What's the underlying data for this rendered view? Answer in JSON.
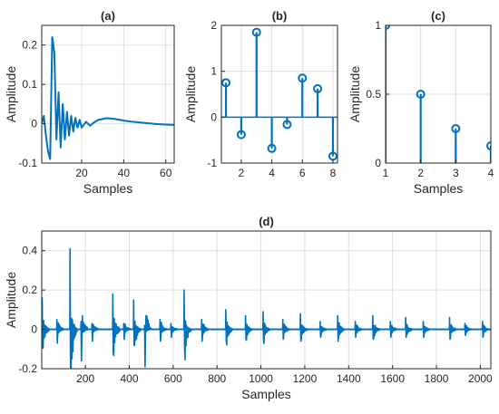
{
  "chart_data": [
    {
      "panel": "(a)",
      "type": "line",
      "title": "(a)",
      "xlabel": "Samples",
      "ylabel": "Amplitude",
      "xlim": [
        1,
        64
      ],
      "ylim": [
        -0.1,
        0.25
      ],
      "xticks": [
        20,
        40,
        60
      ],
      "yticks": [
        -0.1,
        0,
        0.1,
        0.2
      ],
      "ytick_labels": [
        "-0.1",
        "0",
        "0.1",
        "0.2"
      ],
      "grid": true,
      "color": "#0072BD",
      "x": [
        1,
        2,
        3,
        4,
        5,
        6,
        7,
        8,
        9,
        10,
        11,
        12,
        13,
        14,
        15,
        16,
        17,
        18,
        19,
        20,
        22,
        24,
        26,
        28,
        30,
        32,
        34,
        36,
        38,
        40,
        44,
        48,
        52,
        56,
        60,
        64
      ],
      "y": [
        0,
        0.02,
        -0.03,
        -0.07,
        -0.09,
        0.22,
        0.18,
        -0.04,
        0.08,
        -0.06,
        0.05,
        -0.04,
        0.03,
        -0.03,
        0.02,
        -0.02,
        0.015,
        -0.01,
        0.01,
        -0.01,
        0.005,
        -0.005,
        0.004,
        0.01,
        0.012,
        0.014,
        0.013,
        0.012,
        0.01,
        0.008,
        0.005,
        0.003,
        0.001,
        -0.001,
        -0.002,
        -0.003
      ]
    },
    {
      "panel": "(b)",
      "type": "stem",
      "title": "(b)",
      "xlabel": "",
      "ylabel": "Amplitude",
      "xlim": [
        0.7,
        8.3
      ],
      "ylim": [
        -1,
        2
      ],
      "xticks": [
        2,
        4,
        6,
        8
      ],
      "yticks": [
        -1,
        0,
        1,
        2
      ],
      "grid": true,
      "color": "#0072BD",
      "x": [
        1,
        2,
        3,
        4,
        5,
        6,
        7,
        8
      ],
      "y": [
        0.75,
        -0.38,
        1.85,
        -0.68,
        -0.16,
        0.85,
        0.62,
        -0.85
      ]
    },
    {
      "panel": "(c)",
      "type": "stem",
      "title": "(c)",
      "xlabel": "Samples",
      "ylabel": "Amplitude",
      "xlim": [
        1,
        4
      ],
      "ylim": [
        0,
        1
      ],
      "xticks": [
        1,
        2,
        3,
        4
      ],
      "yticks": [
        0,
        0.5,
        1
      ],
      "grid": true,
      "color": "#0072BD",
      "x": [
        1,
        2,
        3,
        4
      ],
      "y": [
        1,
        0.5,
        0.25,
        0.125
      ]
    },
    {
      "panel": "(d)",
      "type": "line",
      "title": "(d)",
      "xlabel": "Samples",
      "ylabel": "Amplitude",
      "xlim": [
        1,
        2048
      ],
      "ylim": [
        -0.2,
        0.5
      ],
      "xticks": [
        200,
        400,
        600,
        800,
        1000,
        1200,
        1400,
        1600,
        1800,
        2000
      ],
      "yticks": [
        -0.2,
        0,
        0.2,
        0.4
      ],
      "ytick_labels": [
        "-0.2",
        "0",
        "0.2",
        "0.4"
      ],
      "grid": true,
      "color": "#0072BD",
      "bursts": [
        {
          "x": 3,
          "up": 0.16,
          "down": -0.09
        },
        {
          "x": 70,
          "up": 0.05,
          "down": -0.07
        },
        {
          "x": 130,
          "up": 0.41,
          "down": -0.15
        },
        {
          "x": 180,
          "up": 0.04,
          "down": -0.16
        },
        {
          "x": 230,
          "up": 0.03,
          "down": -0.06
        },
        {
          "x": 325,
          "up": 0.18,
          "down": -0.12
        },
        {
          "x": 375,
          "up": 0.03,
          "down": -0.05
        },
        {
          "x": 420,
          "up": 0.15,
          "down": -0.08
        },
        {
          "x": 470,
          "up": 0.02,
          "down": -0.19
        },
        {
          "x": 540,
          "up": 0.05,
          "down": -0.06
        },
        {
          "x": 590,
          "up": 0.03,
          "down": -0.04
        },
        {
          "x": 650,
          "up": 0.2,
          "down": -0.08
        },
        {
          "x": 730,
          "up": 0.05,
          "down": -0.06
        },
        {
          "x": 840,
          "up": 0.1,
          "down": -0.06
        },
        {
          "x": 930,
          "up": 0.07,
          "down": -0.05
        },
        {
          "x": 1010,
          "up": 0.09,
          "down": -0.06
        },
        {
          "x": 1100,
          "up": 0.05,
          "down": -0.05
        },
        {
          "x": 1180,
          "up": 0.08,
          "down": -0.06
        },
        {
          "x": 1270,
          "up": 0.04,
          "down": -0.04
        },
        {
          "x": 1350,
          "up": 0.07,
          "down": -0.06
        },
        {
          "x": 1430,
          "up": 0.04,
          "down": -0.04
        },
        {
          "x": 1510,
          "up": 0.07,
          "down": -0.05
        },
        {
          "x": 1590,
          "up": 0.04,
          "down": -0.04
        },
        {
          "x": 1660,
          "up": 0.06,
          "down": -0.04
        },
        {
          "x": 1740,
          "up": 0.04,
          "down": -0.04
        },
        {
          "x": 1860,
          "up": 0.06,
          "down": -0.05
        },
        {
          "x": 1930,
          "up": 0.03,
          "down": -0.03
        },
        {
          "x": 2010,
          "up": 0.04,
          "down": -0.04
        }
      ]
    }
  ]
}
